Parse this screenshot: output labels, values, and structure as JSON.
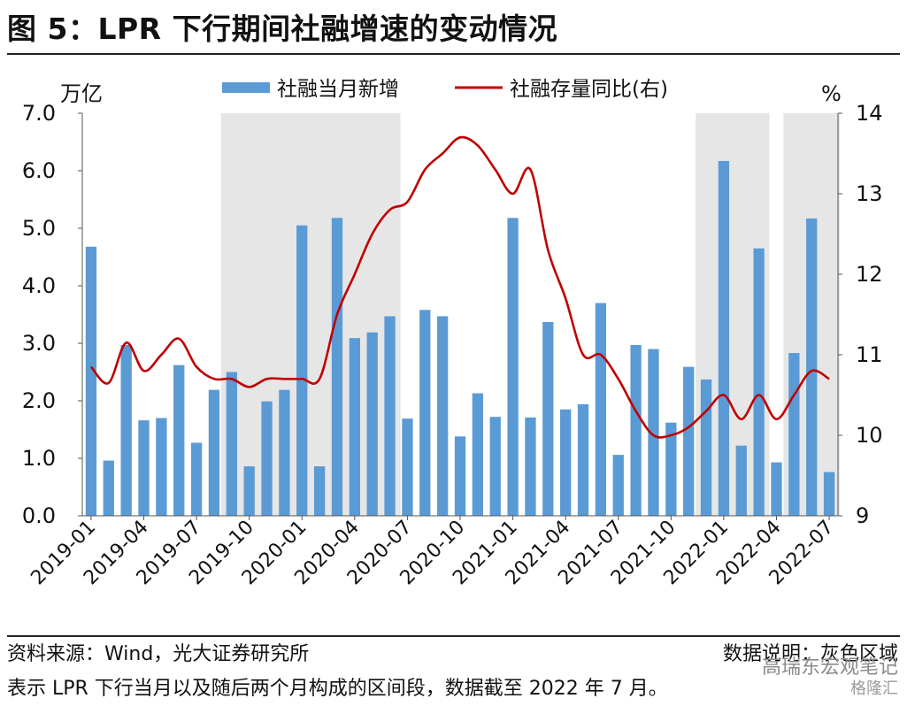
{
  "header": {
    "title": "图 5：LPR 下行期间社融增速的变动情况"
  },
  "footer": {
    "source": "资料来源：Wind，光大证券研究所",
    "note_right": "数据说明：灰色区域",
    "note_line2": "表示 LPR 下行当月以及随后两个月构成的区间段，数据截至 2022 年 7 月。",
    "watermark": "高瑞东宏观笔记",
    "watermark2": "格隆汇"
  },
  "chart_data": {
    "type": "bar+line",
    "left_unit": "万亿",
    "right_unit": "%",
    "left_ylim": [
      0,
      7
    ],
    "left_ticks": [
      "0.0",
      "1.0",
      "2.0",
      "3.0",
      "4.0",
      "5.0",
      "6.0",
      "7.0"
    ],
    "right_ylim": [
      9,
      14
    ],
    "right_ticks": [
      "9",
      "10",
      "11",
      "12",
      "13",
      "14"
    ],
    "legend_position": "top",
    "x": [
      "2019-01",
      "2019-02",
      "2019-03",
      "2019-04",
      "2019-05",
      "2019-06",
      "2019-07",
      "2019-08",
      "2019-09",
      "2019-10",
      "2019-11",
      "2019-12",
      "2020-01",
      "2020-02",
      "2020-03",
      "2020-04",
      "2020-05",
      "2020-06",
      "2020-07",
      "2020-08",
      "2020-09",
      "2020-10",
      "2020-11",
      "2020-12",
      "2021-01",
      "2021-02",
      "2021-03",
      "2021-04",
      "2021-05",
      "2021-06",
      "2021-07",
      "2021-08",
      "2021-09",
      "2021-10",
      "2021-11",
      "2021-12",
      "2022-01",
      "2022-02",
      "2022-03",
      "2022-04",
      "2022-05",
      "2022-06",
      "2022-07"
    ],
    "x_tick_labels": [
      "2019-01",
      "2019-04",
      "2019-07",
      "2019-10",
      "2020-01",
      "2020-04",
      "2020-07",
      "2020-10",
      "2021-01",
      "2021-04",
      "2021-07",
      "2021-10",
      "2022-01",
      "2022-04",
      "2022-07"
    ],
    "shaded_periods": [
      [
        "2019-09",
        "2020-06"
      ],
      [
        "2021-12",
        "2022-03"
      ],
      [
        "2022-05",
        "2022-07"
      ]
    ],
    "series": [
      {
        "name": "社融当月新增",
        "kind": "bar",
        "axis": "left",
        "color": "#5b9bd5",
        "values": [
          4.68,
          0.96,
          2.97,
          1.66,
          1.7,
          2.62,
          1.27,
          2.19,
          2.5,
          0.86,
          1.99,
          2.19,
          5.05,
          0.86,
          5.18,
          3.09,
          3.19,
          3.47,
          1.69,
          3.58,
          3.47,
          1.38,
          2.13,
          1.72,
          5.18,
          1.71,
          3.37,
          1.85,
          1.94,
          3.7,
          1.06,
          2.97,
          2.9,
          1.62,
          2.59,
          2.37,
          6.17,
          1.22,
          4.65,
          0.93,
          2.83,
          5.17,
          0.76
        ]
      },
      {
        "name": "社融存量同比(右)",
        "kind": "line",
        "axis": "right",
        "color": "#c00000",
        "values": [
          10.85,
          10.65,
          11.15,
          10.8,
          11.0,
          11.2,
          10.85,
          10.7,
          10.7,
          10.6,
          10.7,
          10.7,
          10.7,
          10.7,
          11.5,
          12.0,
          12.5,
          12.8,
          12.9,
          13.3,
          13.5,
          13.7,
          13.6,
          13.3,
          13.0,
          13.3,
          12.3,
          11.7,
          11.0,
          11.0,
          10.7,
          10.3,
          10.0,
          10.0,
          10.1,
          10.3,
          10.5,
          10.2,
          10.5,
          10.2,
          10.5,
          10.8,
          10.7
        ]
      }
    ]
  }
}
